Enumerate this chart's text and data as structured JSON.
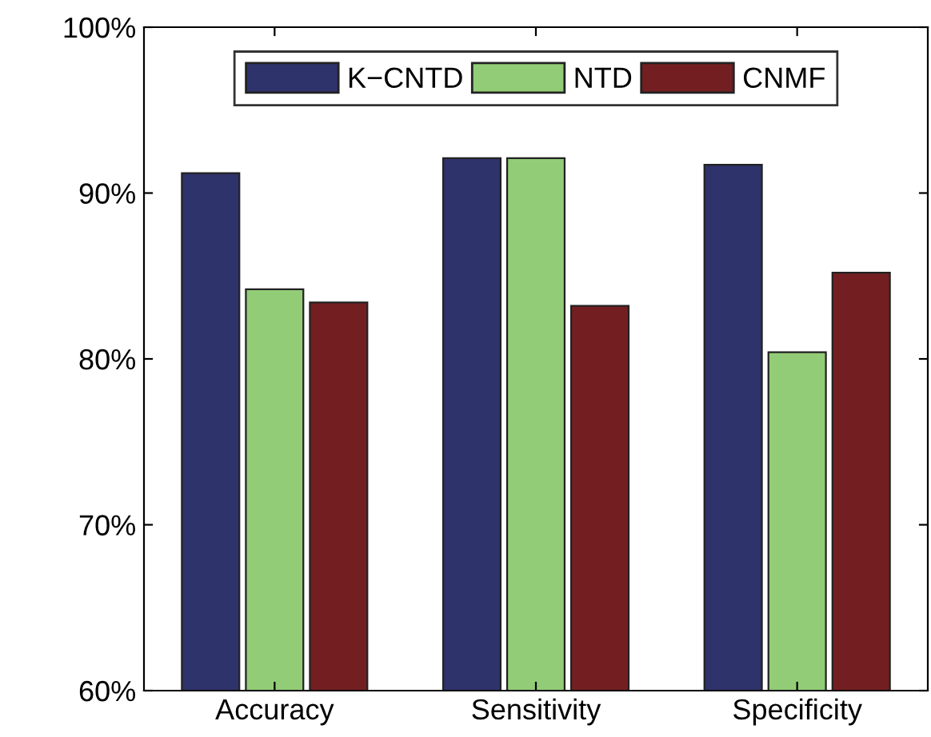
{
  "chart_data": {
    "type": "bar",
    "categories": [
      "Accuracy",
      "Sensitivity",
      "Specificity"
    ],
    "series": [
      {
        "name": "K−CNTD",
        "color": "#2f336b",
        "values": [
          91.2,
          92.1,
          91.7
        ]
      },
      {
        "name": "NTD",
        "color": "#92cc77",
        "values": [
          84.2,
          92.1,
          80.4
        ]
      },
      {
        "name": "CNMF",
        "color": "#731f21",
        "values": [
          83.4,
          83.2,
          85.2
        ]
      }
    ],
    "ylim": [
      60,
      100
    ],
    "yticks": [
      {
        "value": 60,
        "label": "60%"
      },
      {
        "value": 70,
        "label": "70%"
      },
      {
        "value": 80,
        "label": "80%"
      },
      {
        "value": 90,
        "label": "90%"
      },
      {
        "value": 100,
        "label": "100%"
      }
    ],
    "grid": false,
    "legend": "top"
  }
}
